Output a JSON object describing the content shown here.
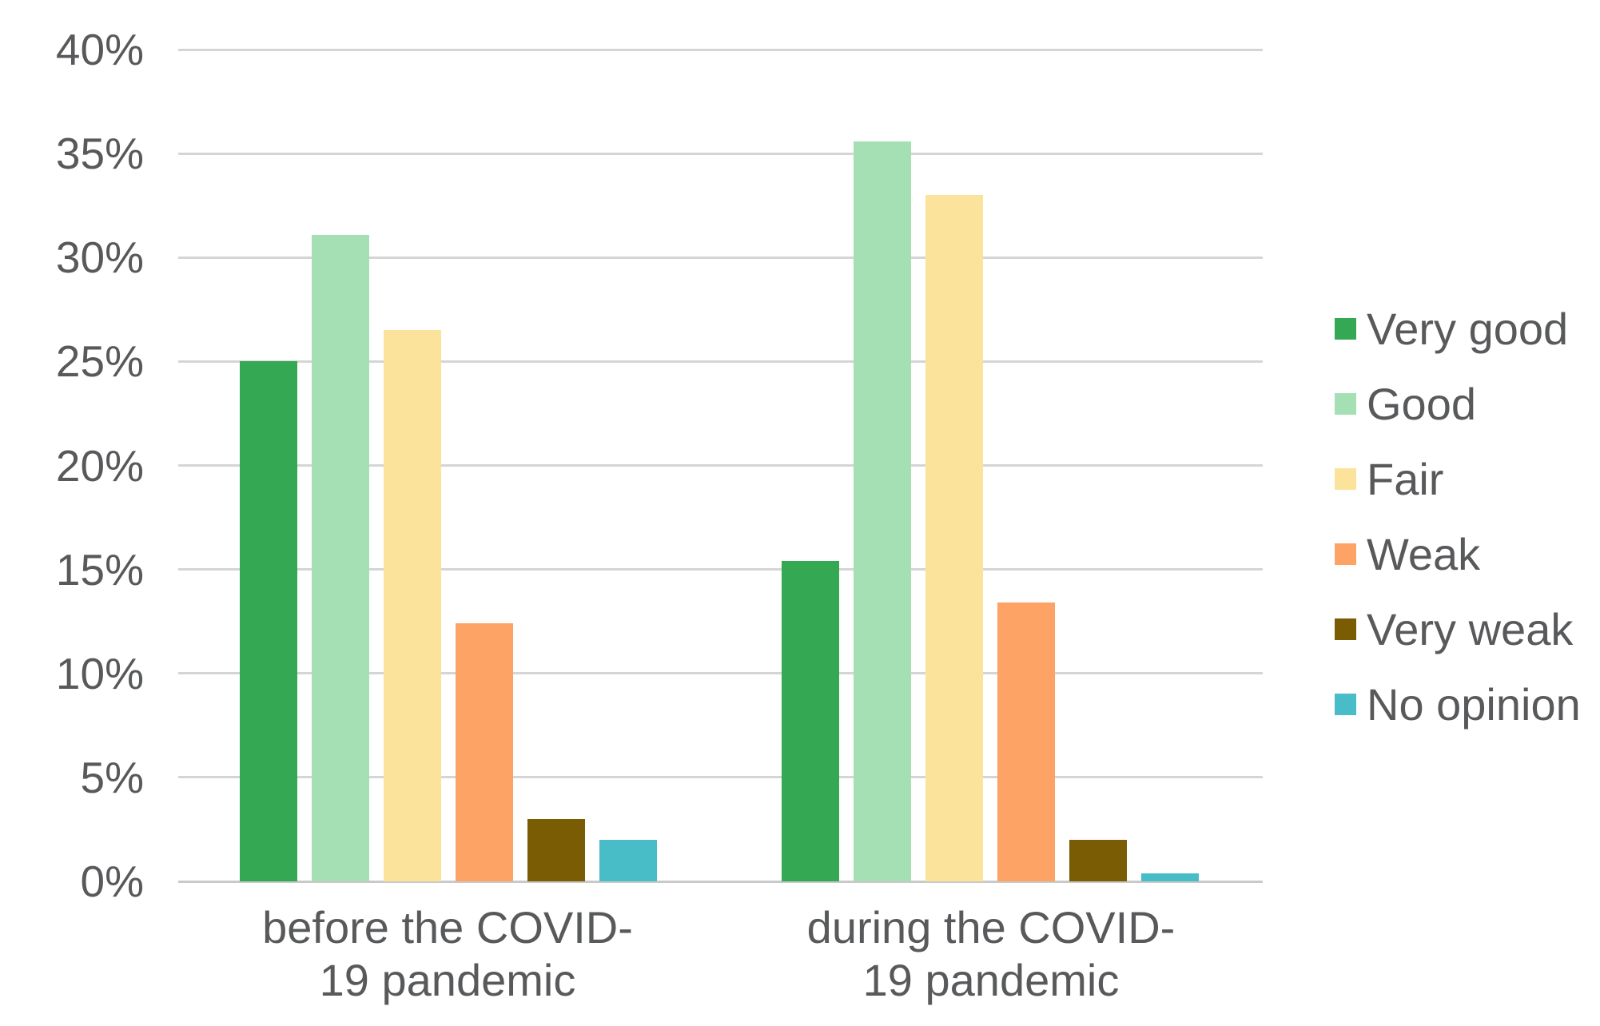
{
  "chart_data": {
    "type": "bar",
    "title": "",
    "categories": [
      "before the COVID-19 pandemic",
      "during the COVID-19 pandemic"
    ],
    "series": [
      {
        "name": "Very good",
        "color": "#34a853",
        "values": [
          25.0,
          15.4
        ]
      },
      {
        "name": "Good",
        "color": "#a5e0b4",
        "values": [
          31.1,
          35.6
        ]
      },
      {
        "name": "Fair",
        "color": "#fce39b",
        "values": [
          26.5,
          33.0
        ]
      },
      {
        "name": "Weak",
        "color": "#fda366",
        "values": [
          12.4,
          13.4
        ]
      },
      {
        "name": "Very weak",
        "color": "#7a5c04",
        "values": [
          3.0,
          2.0
        ]
      },
      {
        "name": "No opinion",
        "color": "#48bcc7",
        "values": [
          2.0,
          0.4
        ]
      }
    ],
    "y_axis": {
      "ticks": [
        "40%",
        "35%",
        "30%",
        "25%",
        "20%",
        "15%",
        "10%",
        "5%",
        "0%"
      ],
      "tick_values": [
        40,
        35,
        30,
        25,
        20,
        15,
        10,
        5,
        0
      ],
      "unit": "%",
      "ylim": [
        0,
        40
      ],
      "grid": true
    },
    "xlabel": "",
    "ylabel": "",
    "legend_position": "right"
  },
  "colors": {
    "grid": "#d5d5d5",
    "baseline": "#c9c9c9",
    "text": "#58595b",
    "background": "#ffffff"
  }
}
